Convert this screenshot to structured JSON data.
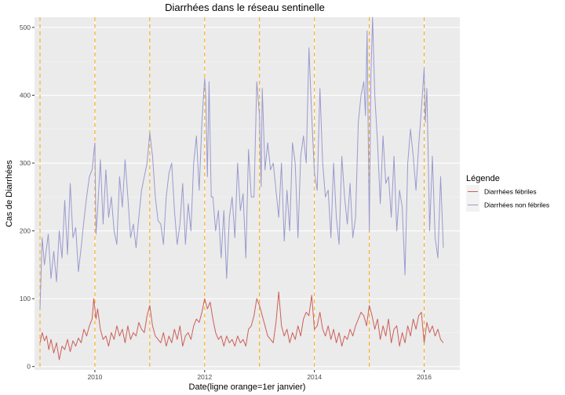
{
  "chart_data": {
    "type": "line",
    "title": "Diarrhées dans le réseau sentinelle",
    "xlabel": "Date(ligne orange=1er janvier)",
    "ylabel": "Cas de Diarrhées",
    "xlim": [
      2008.9,
      2016.65
    ],
    "ylim": [
      -5,
      515
    ],
    "x_ticks": [
      2010,
      2012,
      2014,
      2016
    ],
    "x_tick_labels": [
      "2010",
      "2012",
      "2014",
      "2016"
    ],
    "y_ticks": [
      0,
      100,
      200,
      300,
      400,
      500
    ],
    "y_tick_labels": [
      "0",
      "100",
      "200",
      "300",
      "400",
      "500"
    ],
    "vlines": [
      2009,
      2010,
      2011,
      2012,
      2013,
      2014,
      2015,
      2016
    ],
    "vline_color": "#FFA500",
    "background_color": "#EBEBEB",
    "grid": true,
    "legend_position": "right",
    "legend": {
      "title": "Légende",
      "entries": [
        {
          "label": "Diarrhées fébriles",
          "color": "#CB5F5A"
        },
        {
          "label": "Diarrhées non fébriles",
          "color": "#9A9AD0"
        }
      ]
    },
    "series": [
      {
        "name": "Diarrhées non fébriles",
        "color": "#9A9AD0",
        "points": [
          [
            2009.0,
            85
          ],
          [
            2009.04,
            190
          ],
          [
            2009.08,
            150
          ],
          [
            2009.15,
            195
          ],
          [
            2009.2,
            130
          ],
          [
            2009.25,
            170
          ],
          [
            2009.3,
            125
          ],
          [
            2009.35,
            200
          ],
          [
            2009.4,
            160
          ],
          [
            2009.45,
            245
          ],
          [
            2009.5,
            165
          ],
          [
            2009.55,
            270
          ],
          [
            2009.6,
            190
          ],
          [
            2009.65,
            205
          ],
          [
            2009.7,
            140
          ],
          [
            2009.75,
            175
          ],
          [
            2009.8,
            215
          ],
          [
            2009.85,
            250
          ],
          [
            2009.9,
            280
          ],
          [
            2009.95,
            290
          ],
          [
            2010.0,
            330
          ],
          [
            2010.02,
            195
          ],
          [
            2010.05,
            230
          ],
          [
            2010.1,
            305
          ],
          [
            2010.15,
            210
          ],
          [
            2010.2,
            290
          ],
          [
            2010.25,
            220
          ],
          [
            2010.3,
            250
          ],
          [
            2010.35,
            200
          ],
          [
            2010.4,
            180
          ],
          [
            2010.45,
            280
          ],
          [
            2010.5,
            235
          ],
          [
            2010.55,
            305
          ],
          [
            2010.6,
            250
          ],
          [
            2010.65,
            190
          ],
          [
            2010.7,
            210
          ],
          [
            2010.75,
            175
          ],
          [
            2010.8,
            220
          ],
          [
            2010.85,
            260
          ],
          [
            2010.9,
            280
          ],
          [
            2010.95,
            300
          ],
          [
            2011.0,
            345
          ],
          [
            2011.05,
            310
          ],
          [
            2011.1,
            250
          ],
          [
            2011.15,
            215
          ],
          [
            2011.2,
            210
          ],
          [
            2011.25,
            180
          ],
          [
            2011.3,
            250
          ],
          [
            2011.35,
            285
          ],
          [
            2011.4,
            300
          ],
          [
            2011.45,
            230
          ],
          [
            2011.5,
            180
          ],
          [
            2011.55,
            210
          ],
          [
            2011.6,
            270
          ],
          [
            2011.65,
            180
          ],
          [
            2011.7,
            240
          ],
          [
            2011.75,
            200
          ],
          [
            2011.8,
            300
          ],
          [
            2011.85,
            340
          ],
          [
            2011.9,
            260
          ],
          [
            2011.95,
            360
          ],
          [
            2012.0,
            425
          ],
          [
            2012.02,
            400
          ],
          [
            2012.05,
            280
          ],
          [
            2012.08,
            420
          ],
          [
            2012.12,
            250
          ],
          [
            2012.15,
            250
          ],
          [
            2012.2,
            200
          ],
          [
            2012.25,
            230
          ],
          [
            2012.3,
            160
          ],
          [
            2012.35,
            230
          ],
          [
            2012.4,
            130
          ],
          [
            2012.45,
            220
          ],
          [
            2012.5,
            250
          ],
          [
            2012.55,
            190
          ],
          [
            2012.6,
            300
          ],
          [
            2012.65,
            230
          ],
          [
            2012.7,
            255
          ],
          [
            2012.75,
            160
          ],
          [
            2012.8,
            320
          ],
          [
            2012.85,
            250
          ],
          [
            2012.9,
            250
          ],
          [
            2012.95,
            420
          ],
          [
            2013.0,
            370
          ],
          [
            2013.03,
            265
          ],
          [
            2013.05,
            410
          ],
          [
            2013.1,
            290
          ],
          [
            2013.15,
            330
          ],
          [
            2013.2,
            290
          ],
          [
            2013.25,
            300
          ],
          [
            2013.3,
            260
          ],
          [
            2013.35,
            220
          ],
          [
            2013.4,
            300
          ],
          [
            2013.45,
            185
          ],
          [
            2013.5,
            260
          ],
          [
            2013.55,
            200
          ],
          [
            2013.6,
            330
          ],
          [
            2013.65,
            300
          ],
          [
            2013.7,
            190
          ],
          [
            2013.75,
            310
          ],
          [
            2013.8,
            340
          ],
          [
            2013.85,
            300
          ],
          [
            2013.9,
            470
          ],
          [
            2013.95,
            370
          ],
          [
            2014.0,
            285
          ],
          [
            2014.05,
            260
          ],
          [
            2014.1,
            410
          ],
          [
            2014.15,
            300
          ],
          [
            2014.2,
            250
          ],
          [
            2014.25,
            260
          ],
          [
            2014.3,
            190
          ],
          [
            2014.35,
            300
          ],
          [
            2014.4,
            220
          ],
          [
            2014.45,
            180
          ],
          [
            2014.5,
            310
          ],
          [
            2014.55,
            250
          ],
          [
            2014.6,
            210
          ],
          [
            2014.65,
            270
          ],
          [
            2014.7,
            190
          ],
          [
            2014.75,
            220
          ],
          [
            2014.8,
            360
          ],
          [
            2014.85,
            400
          ],
          [
            2014.9,
            420
          ],
          [
            2014.93,
            370
          ],
          [
            2014.96,
            495
          ],
          [
            2015.0,
            200
          ],
          [
            2015.03,
            430
          ],
          [
            2015.06,
            515
          ],
          [
            2015.1,
            400
          ],
          [
            2015.15,
            330
          ],
          [
            2015.2,
            240
          ],
          [
            2015.25,
            340
          ],
          [
            2015.3,
            270
          ],
          [
            2015.35,
            280
          ],
          [
            2015.4,
            220
          ],
          [
            2015.45,
            310
          ],
          [
            2015.5,
            200
          ],
          [
            2015.55,
            260
          ],
          [
            2015.6,
            235
          ],
          [
            2015.65,
            135
          ],
          [
            2015.7,
            300
          ],
          [
            2015.75,
            350
          ],
          [
            2015.8,
            310
          ],
          [
            2015.85,
            260
          ],
          [
            2015.9,
            325
          ],
          [
            2015.95,
            380
          ],
          [
            2016.0,
            440
          ],
          [
            2016.02,
            360
          ],
          [
            2016.05,
            410
          ],
          [
            2016.1,
            200
          ],
          [
            2016.15,
            310
          ],
          [
            2016.2,
            190
          ],
          [
            2016.25,
            160
          ],
          [
            2016.3,
            280
          ],
          [
            2016.35,
            175
          ]
        ]
      },
      {
        "name": "Diarrhées fébriles",
        "color": "#CB5F5A",
        "points": [
          [
            2009.0,
            35
          ],
          [
            2009.04,
            50
          ],
          [
            2009.08,
            38
          ],
          [
            2009.12,
            45
          ],
          [
            2009.16,
            25
          ],
          [
            2009.2,
            40
          ],
          [
            2009.25,
            20
          ],
          [
            2009.3,
            35
          ],
          [
            2009.35,
            10
          ],
          [
            2009.4,
            30
          ],
          [
            2009.45,
            25
          ],
          [
            2009.5,
            40
          ],
          [
            2009.55,
            22
          ],
          [
            2009.6,
            38
          ],
          [
            2009.65,
            30
          ],
          [
            2009.7,
            42
          ],
          [
            2009.75,
            35
          ],
          [
            2009.8,
            55
          ],
          [
            2009.85,
            45
          ],
          [
            2009.9,
            60
          ],
          [
            2009.95,
            70
          ],
          [
            2009.98,
            100
          ],
          [
            2010.02,
            70
          ],
          [
            2010.05,
            85
          ],
          [
            2010.1,
            55
          ],
          [
            2010.15,
            40
          ],
          [
            2010.2,
            45
          ],
          [
            2010.25,
            30
          ],
          [
            2010.3,
            50
          ],
          [
            2010.35,
            40
          ],
          [
            2010.4,
            60
          ],
          [
            2010.45,
            45
          ],
          [
            2010.5,
            55
          ],
          [
            2010.55,
            35
          ],
          [
            2010.6,
            60
          ],
          [
            2010.65,
            40
          ],
          [
            2010.7,
            50
          ],
          [
            2010.75,
            45
          ],
          [
            2010.8,
            65
          ],
          [
            2010.85,
            55
          ],
          [
            2010.9,
            50
          ],
          [
            2010.95,
            75
          ],
          [
            2011.0,
            90
          ],
          [
            2011.05,
            60
          ],
          [
            2011.1,
            45
          ],
          [
            2011.15,
            40
          ],
          [
            2011.2,
            35
          ],
          [
            2011.25,
            50
          ],
          [
            2011.3,
            30
          ],
          [
            2011.35,
            45
          ],
          [
            2011.4,
            35
          ],
          [
            2011.45,
            55
          ],
          [
            2011.5,
            40
          ],
          [
            2011.55,
            60
          ],
          [
            2011.6,
            30
          ],
          [
            2011.65,
            45
          ],
          [
            2011.7,
            50
          ],
          [
            2011.75,
            40
          ],
          [
            2011.8,
            60
          ],
          [
            2011.85,
            70
          ],
          [
            2011.9,
            65
          ],
          [
            2011.95,
            80
          ],
          [
            2012.0,
            100
          ],
          [
            2012.05,
            85
          ],
          [
            2012.1,
            95
          ],
          [
            2012.15,
            70
          ],
          [
            2012.2,
            50
          ],
          [
            2012.25,
            40
          ],
          [
            2012.3,
            45
          ],
          [
            2012.35,
            30
          ],
          [
            2012.4,
            45
          ],
          [
            2012.45,
            35
          ],
          [
            2012.5,
            40
          ],
          [
            2012.55,
            30
          ],
          [
            2012.6,
            45
          ],
          [
            2012.65,
            35
          ],
          [
            2012.7,
            40
          ],
          [
            2012.75,
            30
          ],
          [
            2012.8,
            55
          ],
          [
            2012.85,
            60
          ],
          [
            2012.9,
            75
          ],
          [
            2012.95,
            100
          ],
          [
            2013.0,
            90
          ],
          [
            2013.05,
            75
          ],
          [
            2013.1,
            60
          ],
          [
            2013.15,
            45
          ],
          [
            2013.2,
            40
          ],
          [
            2013.25,
            35
          ],
          [
            2013.3,
            65
          ],
          [
            2013.35,
            110
          ],
          [
            2013.4,
            60
          ],
          [
            2013.45,
            45
          ],
          [
            2013.5,
            55
          ],
          [
            2013.55,
            35
          ],
          [
            2013.6,
            50
          ],
          [
            2013.65,
            40
          ],
          [
            2013.7,
            60
          ],
          [
            2013.75,
            45
          ],
          [
            2013.8,
            70
          ],
          [
            2013.85,
            80
          ],
          [
            2013.9,
            75
          ],
          [
            2013.95,
            105
          ],
          [
            2014.0,
            55
          ],
          [
            2014.05,
            60
          ],
          [
            2014.1,
            80
          ],
          [
            2014.15,
            55
          ],
          [
            2014.2,
            45
          ],
          [
            2014.25,
            60
          ],
          [
            2014.3,
            40
          ],
          [
            2014.35,
            55
          ],
          [
            2014.4,
            35
          ],
          [
            2014.45,
            50
          ],
          [
            2014.5,
            30
          ],
          [
            2014.55,
            45
          ],
          [
            2014.6,
            40
          ],
          [
            2014.65,
            55
          ],
          [
            2014.7,
            45
          ],
          [
            2014.75,
            60
          ],
          [
            2014.8,
            70
          ],
          [
            2014.85,
            80
          ],
          [
            2014.9,
            75
          ],
          [
            2014.95,
            60
          ],
          [
            2015.0,
            90
          ],
          [
            2015.05,
            75
          ],
          [
            2015.1,
            55
          ],
          [
            2015.15,
            70
          ],
          [
            2015.2,
            40
          ],
          [
            2015.25,
            60
          ],
          [
            2015.3,
            45
          ],
          [
            2015.35,
            70
          ],
          [
            2015.4,
            35
          ],
          [
            2015.45,
            55
          ],
          [
            2015.5,
            60
          ],
          [
            2015.55,
            30
          ],
          [
            2015.6,
            50
          ],
          [
            2015.65,
            35
          ],
          [
            2015.7,
            60
          ],
          [
            2015.75,
            45
          ],
          [
            2015.8,
            70
          ],
          [
            2015.85,
            55
          ],
          [
            2015.9,
            75
          ],
          [
            2015.95,
            80
          ],
          [
            2016.0,
            35
          ],
          [
            2016.05,
            65
          ],
          [
            2016.1,
            50
          ],
          [
            2016.15,
            60
          ],
          [
            2016.2,
            45
          ],
          [
            2016.25,
            55
          ],
          [
            2016.3,
            40
          ],
          [
            2016.35,
            35
          ]
        ]
      }
    ]
  }
}
